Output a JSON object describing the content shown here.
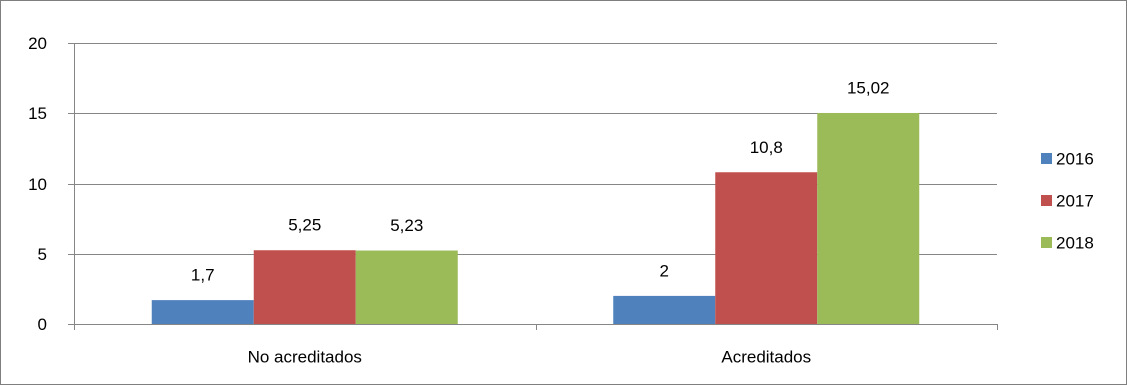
{
  "chart_data": {
    "type": "bar",
    "categories": [
      "No acreditados",
      "Acreditados"
    ],
    "series": [
      {
        "name": "2016",
        "values": [
          1.7,
          2
        ],
        "labels": [
          "1,7",
          "2"
        ],
        "color": "#4f81bd"
      },
      {
        "name": "2017",
        "values": [
          5.25,
          10.8
        ],
        "labels": [
          "5,25",
          "10,8"
        ],
        "color": "#c0504d"
      },
      {
        "name": "2018",
        "values": [
          5.23,
          15.02
        ],
        "labels": [
          "5,23",
          "15,02"
        ],
        "color": "#9bbb59"
      }
    ],
    "yticks": [
      0,
      5,
      10,
      15,
      20
    ],
    "ylim": [
      0,
      20
    ],
    "grid": true,
    "legend": "right"
  }
}
